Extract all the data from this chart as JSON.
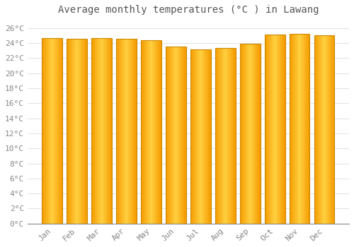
{
  "title": "Average monthly temperatures (°C ) in Lawang",
  "months": [
    "Jan",
    "Feb",
    "Mar",
    "Apr",
    "May",
    "Jun",
    "Jul",
    "Aug",
    "Sep",
    "Oct",
    "Nov",
    "Dec"
  ],
  "temperatures": [
    24.7,
    24.6,
    24.7,
    24.6,
    24.4,
    23.5,
    23.2,
    23.3,
    23.9,
    25.1,
    25.2,
    25.0
  ],
  "bar_color_center": "#FFD040",
  "bar_color_edge": "#F59B00",
  "bar_outline_color": "#CC8800",
  "background_color": "#FFFFFF",
  "grid_color": "#DDDDDD",
  "ylim": [
    0,
    27
  ],
  "yticks": [
    0,
    2,
    4,
    6,
    8,
    10,
    12,
    14,
    16,
    18,
    20,
    22,
    24,
    26
  ],
  "title_fontsize": 10,
  "tick_fontsize": 8,
  "title_color": "#555555",
  "tick_color": "#888888",
  "bar_width": 0.82,
  "gradient_steps": 50
}
